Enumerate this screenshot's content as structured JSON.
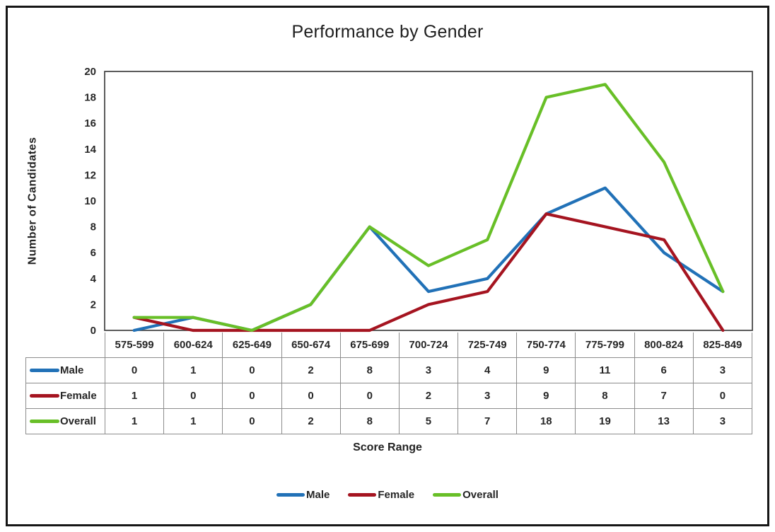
{
  "figure": {
    "border_color": "#161616",
    "background": "#ffffff",
    "axis_color": "#3f3f3f",
    "table_border_color": "#8c8c8c",
    "text_color": "#262626"
  },
  "chart_data": {
    "type": "line",
    "title": "Performance by Gender",
    "xlabel": "Score Range",
    "ylabel": "Number of Candidates",
    "ylim": [
      0,
      20
    ],
    "y_ticks": [
      0,
      2,
      4,
      6,
      8,
      10,
      12,
      14,
      16,
      18,
      20
    ],
    "gridlines": false,
    "legend_position": "bottom",
    "has_data_table": true,
    "categories": [
      "575-599",
      "600-624",
      "625-649",
      "650-674",
      "675-699",
      "700-724",
      "725-749",
      "750-774",
      "775-799",
      "800-824",
      "825-849"
    ],
    "series": [
      {
        "name": "Male",
        "color": "#2171B7",
        "values": [
          0,
          1,
          0,
          2,
          8,
          3,
          4,
          9,
          11,
          6,
          3
        ]
      },
      {
        "name": "Female",
        "color": "#A51420",
        "values": [
          1,
          0,
          0,
          0,
          0,
          2,
          3,
          9,
          8,
          7,
          0
        ]
      },
      {
        "name": "Overall",
        "color": "#68BF27",
        "values": [
          1,
          1,
          0,
          2,
          8,
          5,
          7,
          18,
          19,
          13,
          3
        ]
      }
    ]
  }
}
